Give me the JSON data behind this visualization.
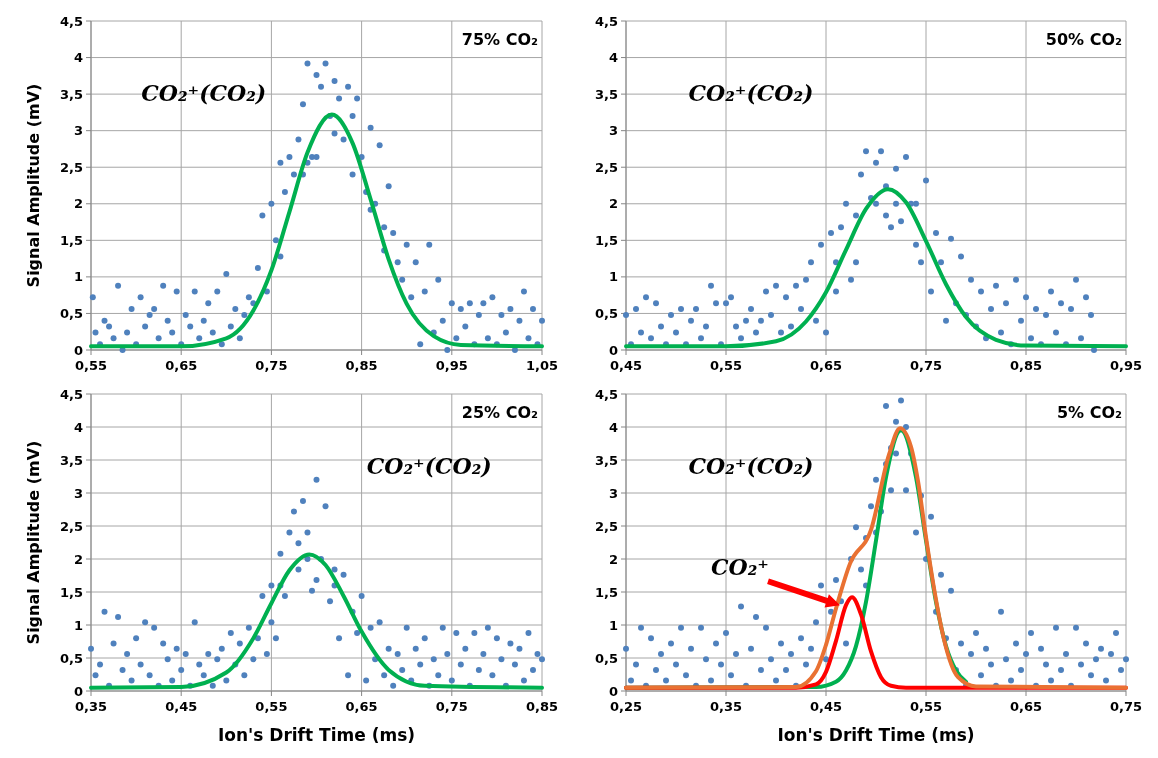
{
  "chart_data": [
    {
      "type": "scatter",
      "ylabel": "Signal Amplitude (mV)",
      "xlim": [
        0.55,
        1.05
      ],
      "ylim": [
        0,
        4.5
      ],
      "xticks": [
        {
          "value": 0.55,
          "label": "0,55"
        },
        {
          "value": 0.65,
          "label": "0,65"
        },
        {
          "value": 0.75,
          "label": "0,75"
        },
        {
          "value": 0.85,
          "label": "0,85"
        },
        {
          "value": 0.95,
          "label": "0,95"
        },
        {
          "value": 1.05,
          "label": "1,05"
        }
      ],
      "yticks": [
        0,
        {
          "value": 0.5,
          "label": "0,5"
        },
        1,
        {
          "value": 1.5,
          "label": "1,5"
        },
        2,
        {
          "value": 2.5,
          "label": "2,5"
        },
        3,
        {
          "value": 3.5,
          "label": "3,5"
        },
        4,
        {
          "value": 4.5,
          "label": "4,5"
        }
      ],
      "grid": true,
      "marker": "circle",
      "series": [
        {
          "type": "scatter",
          "color": "#4f81bd",
          "x": [
            0.552,
            0.555,
            0.56,
            0.565,
            0.57,
            0.575,
            0.58,
            0.585,
            0.59,
            0.595,
            0.6,
            0.605,
            0.61,
            0.615,
            0.62,
            0.625,
            0.63,
            0.635,
            0.64,
            0.645,
            0.65,
            0.655,
            0.66,
            0.665,
            0.67,
            0.675,
            0.68,
            0.685,
            0.69,
            0.695,
            0.7,
            0.705,
            0.71,
            0.715,
            0.72,
            0.725,
            0.73,
            0.735,
            0.74,
            0.745,
            0.75,
            0.755,
            0.76,
            0.765,
            0.77,
            0.775,
            0.78,
            0.785,
            0.79,
            0.795,
            0.8,
            0.805,
            0.81,
            0.815,
            0.82,
            0.825,
            0.83,
            0.835,
            0.84,
            0.845,
            0.85,
            0.855,
            0.86,
            0.865,
            0.87,
            0.875,
            0.88,
            0.885,
            0.89,
            0.895,
            0.9,
            0.905,
            0.91,
            0.915,
            0.92,
            0.925,
            0.93,
            0.935,
            0.94,
            0.945,
            0.95,
            0.955,
            0.96,
            0.965,
            0.97,
            0.975,
            0.98,
            0.985,
            0.99,
            0.995,
            1.0,
            1.005,
            1.01,
            1.015,
            1.02,
            1.025,
            1.03,
            1.035,
            1.04,
            1.045,
            1.05,
            0.785,
            0.8,
            0.82,
            0.84,
            0.86,
            0.875,
            0.76,
            0.79
          ],
          "values": [
            0.72,
            0.24,
            0.08,
            0.4,
            0.32,
            0.16,
            0.88,
            0,
            0.24,
            0.56,
            0.08,
            0.72,
            0.32,
            0.48,
            0.56,
            0.16,
            0.88,
            0.4,
            0.24,
            0.8,
            0.08,
            0.48,
            0.32,
            0.8,
            0.16,
            0.4,
            0.64,
            0.24,
            0.8,
            0.08,
            1.04,
            0.32,
            0.56,
            0.16,
            0.48,
            0.72,
            0.64,
            1.12,
            1.84,
            0.8,
            2,
            1.5,
            2.56,
            2.16,
            2.64,
            2.4,
            2.88,
            3.36,
            3.92,
            2.64,
            3.76,
            3.6,
            3.92,
            3.2,
            3.68,
            3.44,
            2.88,
            3.6,
            2.4,
            3.44,
            2.64,
            2.16,
            3.04,
            2,
            2.8,
            1.68,
            2.24,
            1.6,
            1.2,
            0.96,
            1.44,
            0.72,
            1.2,
            0.08,
            0.8,
            1.44,
            0.24,
            0.96,
            0.4,
            0,
            0.64,
            0.16,
            0.56,
            0.32,
            0.64,
            0.08,
            0.48,
            0.64,
            0.16,
            0.72,
            0.08,
            0.48,
            0.24,
            0.56,
            0,
            0.4,
            0.8,
            0.16,
            0.56,
            0.08,
            0.4,
            2.4,
            2.64,
            2.96,
            3.2,
            1.92,
            1.36,
            1.28,
            2.56
          ]
        },
        {
          "type": "line",
          "color": "#00b050",
          "marker": "none",
          "x": [
            0.55,
            0.65,
            0.7,
            0.73,
            0.75,
            0.77,
            0.79,
            0.817,
            0.84,
            0.86,
            0.88,
            0.9,
            0.93,
            0.96,
            1.05
          ],
          "values": [
            0.05,
            0.05,
            0.16,
            0.54,
            1.09,
            1.89,
            2.7,
            3.22,
            2.83,
            2.06,
            1.24,
            0.63,
            0.19,
            0.07,
            0.05
          ]
        }
      ],
      "annotations": [
        "75% CO₂",
        "CO₂⁺(CO₂)"
      ]
    },
    {
      "type": "scatter",
      "xlim": [
        0.45,
        0.95
      ],
      "ylim": [
        0,
        4.5
      ],
      "xticks": [
        {
          "value": 0.45,
          "label": "0,45"
        },
        {
          "value": 0.55,
          "label": "0,55"
        },
        {
          "value": 0.65,
          "label": "0,65"
        },
        {
          "value": 0.75,
          "label": "0,75"
        },
        {
          "value": 0.85,
          "label": "0,85"
        },
        {
          "value": 0.95,
          "label": "0,95"
        }
      ],
      "yticks": [
        0,
        {
          "value": 0.5,
          "label": "0,5"
        },
        1,
        {
          "value": 1.5,
          "label": "1,5"
        },
        2,
        {
          "value": 2.5,
          "label": "2,5"
        },
        3,
        {
          "value": 3.5,
          "label": "3,5"
        },
        4,
        {
          "value": 4.5,
          "label": "4,5"
        }
      ],
      "grid": true,
      "marker": "circle",
      "series": [
        {
          "type": "scatter",
          "color": "#4f81bd",
          "x": [
            0.45,
            0.455,
            0.46,
            0.465,
            0.47,
            0.475,
            0.48,
            0.485,
            0.49,
            0.495,
            0.5,
            0.505,
            0.51,
            0.515,
            0.52,
            0.525,
            0.53,
            0.535,
            0.54,
            0.545,
            0.55,
            0.555,
            0.56,
            0.565,
            0.57,
            0.575,
            0.58,
            0.585,
            0.59,
            0.595,
            0.6,
            0.605,
            0.61,
            0.615,
            0.62,
            0.625,
            0.63,
            0.635,
            0.64,
            0.645,
            0.65,
            0.655,
            0.66,
            0.665,
            0.67,
            0.675,
            0.68,
            0.685,
            0.69,
            0.695,
            0.7,
            0.705,
            0.71,
            0.715,
            0.72,
            0.725,
            0.73,
            0.735,
            0.74,
            0.745,
            0.75,
            0.755,
            0.76,
            0.765,
            0.77,
            0.775,
            0.78,
            0.785,
            0.79,
            0.795,
            0.8,
            0.805,
            0.81,
            0.815,
            0.82,
            0.825,
            0.83,
            0.835,
            0.84,
            0.845,
            0.85,
            0.855,
            0.86,
            0.865,
            0.87,
            0.875,
            0.88,
            0.885,
            0.89,
            0.895,
            0.9,
            0.905,
            0.91,
            0.915,
            0.918,
            0.68,
            0.7,
            0.72,
            0.74,
            0.71,
            0.66
          ],
          "values": [
            0.48,
            0.08,
            0.56,
            0.24,
            0.72,
            0.16,
            0.64,
            0.32,
            0.08,
            0.48,
            0.24,
            0.56,
            0.08,
            0.4,
            0.56,
            0.16,
            0.32,
            0.88,
            0.64,
            0.08,
            0.64,
            0.72,
            0.32,
            0.16,
            0.4,
            0.56,
            0.24,
            0.4,
            0.8,
            0.48,
            0.88,
            0.24,
            0.72,
            0.32,
            0.88,
            0.56,
            0.96,
            1.2,
            0.4,
            1.44,
            0.24,
            1.6,
            1.2,
            1.68,
            2,
            0.96,
            1.84,
            2.4,
            2.72,
            2.08,
            2.56,
            2.72,
            2.24,
            1.68,
            2.48,
            1.76,
            2.64,
            2,
            1.44,
            1.2,
            2.32,
            0.8,
            1.6,
            1.2,
            0.4,
            1.52,
            0.64,
            1.28,
            0.48,
            0.96,
            0.32,
            0.8,
            0.16,
            0.56,
            0.88,
            0.24,
            0.64,
            0.08,
            0.96,
            0.4,
            0.72,
            0.16,
            0.56,
            0.08,
            0.48,
            0.8,
            0.24,
            0.64,
            0.08,
            0.56,
            0.96,
            0.16,
            0.72,
            0.48,
            0,
            1.2,
            2,
            2,
            2,
            1.84,
            0.8
          ]
        },
        {
          "type": "line",
          "color": "#00b050",
          "marker": "none",
          "x": [
            0.45,
            0.55,
            0.6,
            0.63,
            0.65,
            0.67,
            0.69,
            0.712,
            0.73,
            0.75,
            0.77,
            0.79,
            0.82,
            0.85,
            0.95
          ],
          "values": [
            0.05,
            0.05,
            0.12,
            0.39,
            0.79,
            1.37,
            1.93,
            2.2,
            2.02,
            1.49,
            0.9,
            0.45,
            0.14,
            0.06,
            0.05
          ]
        }
      ],
      "annotations": [
        "50% CO₂",
        "CO₂⁺(CO₂)"
      ]
    },
    {
      "type": "scatter",
      "xlabel": "Ion's Drift Time (ms)",
      "ylabel": "Signal Amplitude (mV)",
      "xlim": [
        0.35,
        0.85
      ],
      "ylim": [
        0,
        4.5
      ],
      "xticks": [
        {
          "value": 0.35,
          "label": "0,35"
        },
        {
          "value": 0.45,
          "label": "0,45"
        },
        {
          "value": 0.55,
          "label": "0,55"
        },
        {
          "value": 0.65,
          "label": "0,65"
        },
        {
          "value": 0.75,
          "label": "0,75"
        },
        {
          "value": 0.85,
          "label": "0,85"
        }
      ],
      "yticks": [
        0,
        {
          "value": 0.5,
          "label": "0,5"
        },
        1,
        {
          "value": 1.5,
          "label": "1,5"
        },
        2,
        {
          "value": 2.5,
          "label": "2,5"
        },
        3,
        {
          "value": 3.5,
          "label": "3,5"
        },
        4,
        {
          "value": 4.5,
          "label": "4,5"
        }
      ],
      "grid": true,
      "marker": "circle",
      "series": [
        {
          "type": "scatter",
          "color": "#4f81bd",
          "x": [
            0.35,
            0.355,
            0.36,
            0.365,
            0.37,
            0.375,
            0.38,
            0.385,
            0.39,
            0.395,
            0.4,
            0.405,
            0.41,
            0.415,
            0.42,
            0.425,
            0.43,
            0.435,
            0.44,
            0.445,
            0.45,
            0.455,
            0.46,
            0.465,
            0.47,
            0.475,
            0.48,
            0.485,
            0.49,
            0.495,
            0.5,
            0.505,
            0.51,
            0.515,
            0.52,
            0.525,
            0.53,
            0.535,
            0.54,
            0.545,
            0.55,
            0.555,
            0.56,
            0.565,
            0.57,
            0.575,
            0.58,
            0.585,
            0.59,
            0.595,
            0.6,
            0.605,
            0.61,
            0.615,
            0.62,
            0.625,
            0.63,
            0.635,
            0.64,
            0.645,
            0.65,
            0.655,
            0.66,
            0.665,
            0.67,
            0.675,
            0.68,
            0.685,
            0.69,
            0.695,
            0.7,
            0.705,
            0.71,
            0.715,
            0.72,
            0.725,
            0.73,
            0.735,
            0.74,
            0.745,
            0.75,
            0.755,
            0.76,
            0.765,
            0.77,
            0.775,
            0.78,
            0.785,
            0.79,
            0.795,
            0.8,
            0.805,
            0.81,
            0.815,
            0.82,
            0.825,
            0.83,
            0.835,
            0.84,
            0.845,
            0.85,
            0.56,
            0.58,
            0.6,
            0.59,
            0.62,
            0.55
          ],
          "values": [
            0.64,
            0.24,
            0.4,
            1.2,
            0.08,
            0.72,
            1.12,
            0.32,
            0.56,
            0.16,
            0.8,
            0.4,
            1.04,
            0.24,
            0.96,
            0.08,
            0.72,
            0.48,
            0.16,
            0.64,
            0.32,
            0.56,
            0.08,
            1.04,
            0.4,
            0.24,
            0.56,
            0.08,
            0.48,
            0.64,
            0.16,
            0.88,
            0.4,
            0.72,
            0.24,
            0.96,
            0.48,
            0.8,
            1.44,
            0.56,
            1.6,
            0.8,
            2.08,
            1.44,
            2.4,
            2.72,
            1.84,
            2.88,
            2.4,
            1.52,
            3.2,
            2,
            2.8,
            1.36,
            1.84,
            0.8,
            1.76,
            0.24,
            1.2,
            0.88,
            1.44,
            0.16,
            0.96,
            0.48,
            1.04,
            0.24,
            0.64,
            0.08,
            0.56,
            0.32,
            0.96,
            0.16,
            0.64,
            0.4,
            0.8,
            0.08,
            0.48,
            0.24,
            0.96,
            0.56,
            0.16,
            0.88,
            0.4,
            0.64,
            0.08,
            0.88,
            0.32,
            0.56,
            0.96,
            0.24,
            0.8,
            0.48,
            0.08,
            0.72,
            0.4,
            0.64,
            0.16,
            0.88,
            0.32,
            0.56,
            0.48,
            1.6,
            2.24,
            1.68,
            2,
            1.6,
            1.04
          ]
        },
        {
          "type": "line",
          "color": "#00b050",
          "marker": "none",
          "x": [
            0.35,
            0.45,
            0.5,
            0.53,
            0.55,
            0.57,
            0.592,
            0.61,
            0.63,
            0.65,
            0.68,
            0.72,
            0.85
          ],
          "values": [
            0.05,
            0.06,
            0.28,
            0.8,
            1.33,
            1.83,
            2.07,
            1.91,
            1.44,
            0.9,
            0.32,
            0.08,
            0.05
          ]
        }
      ],
      "annotations": [
        "25% CO₂",
        "CO₂⁺(CO₂)"
      ]
    },
    {
      "type": "scatter",
      "xlabel": "Ion's Drift Time (ms)",
      "xlim": [
        0.25,
        0.75
      ],
      "ylim": [
        0,
        4.5
      ],
      "xticks": [
        {
          "value": 0.25,
          "label": "0,25"
        },
        {
          "value": 0.35,
          "label": "0,35"
        },
        {
          "value": 0.45,
          "label": "0,45"
        },
        {
          "value": 0.55,
          "label": "0,55"
        },
        {
          "value": 0.65,
          "label": "0,65"
        },
        {
          "value": 0.75,
          "label": "0,75"
        }
      ],
      "yticks": [
        0,
        {
          "value": 0.5,
          "label": "0,5"
        },
        1,
        {
          "value": 1.5,
          "label": "1,5"
        },
        2,
        {
          "value": 2.5,
          "label": "2,5"
        },
        3,
        {
          "value": 3.5,
          "label": "3,5"
        },
        4,
        {
          "value": 4.5,
          "label": "4,5"
        }
      ],
      "grid": true,
      "marker": "circle",
      "series": [
        {
          "type": "scatter",
          "color": "#4f81bd",
          "x": [
            0.25,
            0.255,
            0.26,
            0.265,
            0.27,
            0.275,
            0.28,
            0.285,
            0.29,
            0.295,
            0.3,
            0.305,
            0.31,
            0.315,
            0.32,
            0.325,
            0.33,
            0.335,
            0.34,
            0.345,
            0.35,
            0.355,
            0.36,
            0.365,
            0.37,
            0.375,
            0.38,
            0.385,
            0.39,
            0.395,
            0.4,
            0.405,
            0.41,
            0.415,
            0.42,
            0.425,
            0.43,
            0.435,
            0.44,
            0.445,
            0.45,
            0.455,
            0.46,
            0.465,
            0.47,
            0.475,
            0.48,
            0.485,
            0.49,
            0.495,
            0.5,
            0.505,
            0.51,
            0.515,
            0.52,
            0.525,
            0.53,
            0.535,
            0.54,
            0.545,
            0.55,
            0.555,
            0.56,
            0.565,
            0.57,
            0.575,
            0.58,
            0.585,
            0.59,
            0.595,
            0.6,
            0.605,
            0.61,
            0.615,
            0.62,
            0.625,
            0.63,
            0.635,
            0.64,
            0.645,
            0.65,
            0.655,
            0.66,
            0.665,
            0.67,
            0.675,
            0.68,
            0.685,
            0.69,
            0.695,
            0.7,
            0.705,
            0.71,
            0.715,
            0.72,
            0.725,
            0.73,
            0.735,
            0.74,
            0.745,
            0.75,
            0.52,
            0.53,
            0.5,
            0.515,
            0.51,
            0.49
          ],
          "values": [
            0.64,
            0.16,
            0.4,
            0.96,
            0.08,
            0.8,
            0.32,
            0.56,
            0.16,
            0.72,
            0.4,
            0.96,
            0.24,
            0.64,
            0.08,
            0.96,
            0.48,
            0.16,
            0.72,
            0.4,
            0.88,
            0.24,
            0.56,
            1.28,
            0.08,
            0.64,
            1.12,
            0.32,
            0.96,
            0.48,
            0.16,
            0.72,
            0.32,
            0.56,
            0.08,
            0.8,
            0.4,
            0.64,
            1.04,
            1.6,
            0.48,
            1.2,
            1.68,
            1.36,
            0.72,
            2,
            2.48,
            1.84,
            2.32,
            2.8,
            3.2,
            2.72,
            4.32,
            3.68,
            4.08,
            4.4,
            3.04,
            3.6,
            2.4,
            2.96,
            2,
            2.64,
            1.2,
            1.76,
            0.8,
            1.52,
            0.32,
            0.72,
            0.08,
            0.56,
            0.88,
            0.24,
            0.64,
            0.4,
            0.08,
            1.2,
            0.48,
            0.16,
            0.72,
            0.32,
            0.56,
            0.88,
            0.08,
            0.64,
            0.4,
            0.16,
            0.96,
            0.32,
            0.56,
            0.08,
            0.96,
            0.4,
            0.72,
            0.24,
            0.48,
            0.64,
            0.16,
            0.56,
            0.88,
            0.32,
            0.48,
            3.6,
            4,
            2.4,
            3.04,
            3.44,
            1.6
          ]
        },
        {
          "type": "line",
          "color": "#00b050",
          "marker": "none",
          "x": [
            0.25,
            0.44,
            0.46,
            0.47,
            0.48,
            0.49,
            0.5,
            0.51,
            0.525,
            0.54,
            0.55,
            0.56,
            0.57,
            0.58,
            0.59
          ],
          "values": [
            0.05,
            0.06,
            0.14,
            0.31,
            0.68,
            1.35,
            2.28,
            3.24,
            3.95,
            3.24,
            2.28,
            1.35,
            0.68,
            0.31,
            0.14
          ]
        },
        {
          "type": "line",
          "color": "#ff0000",
          "marker": "none",
          "x": [
            0.25,
            0.42,
            0.44,
            0.45,
            0.46,
            0.47,
            0.476,
            0.485,
            0.495,
            0.505,
            0.515,
            0.53,
            0.75
          ],
          "values": [
            0.05,
            0.05,
            0.1,
            0.29,
            0.76,
            1.3,
            1.42,
            1.16,
            0.6,
            0.21,
            0.08,
            0.05,
            0.05
          ]
        },
        {
          "type": "line",
          "color": "#e97132",
          "marker": "none",
          "x": [
            0.25,
            0.42,
            0.44,
            0.45,
            0.46,
            0.474,
            0.495,
            0.513,
            0.524,
            0.535,
            0.542,
            0.55,
            0.559,
            0.568,
            0.582,
            0.6,
            0.75
          ],
          "values": [
            0.05,
            0.06,
            0.3,
            0.7,
            1.25,
            1.93,
            2.44,
            3.58,
            3.98,
            3.7,
            3.18,
            2.33,
            1.47,
            0.78,
            0.21,
            0.07,
            0.05
          ]
        }
      ],
      "annotations": [
        "5% CO₂",
        "CO₂⁺(CO₂)",
        "CO₂⁺"
      ]
    }
  ]
}
